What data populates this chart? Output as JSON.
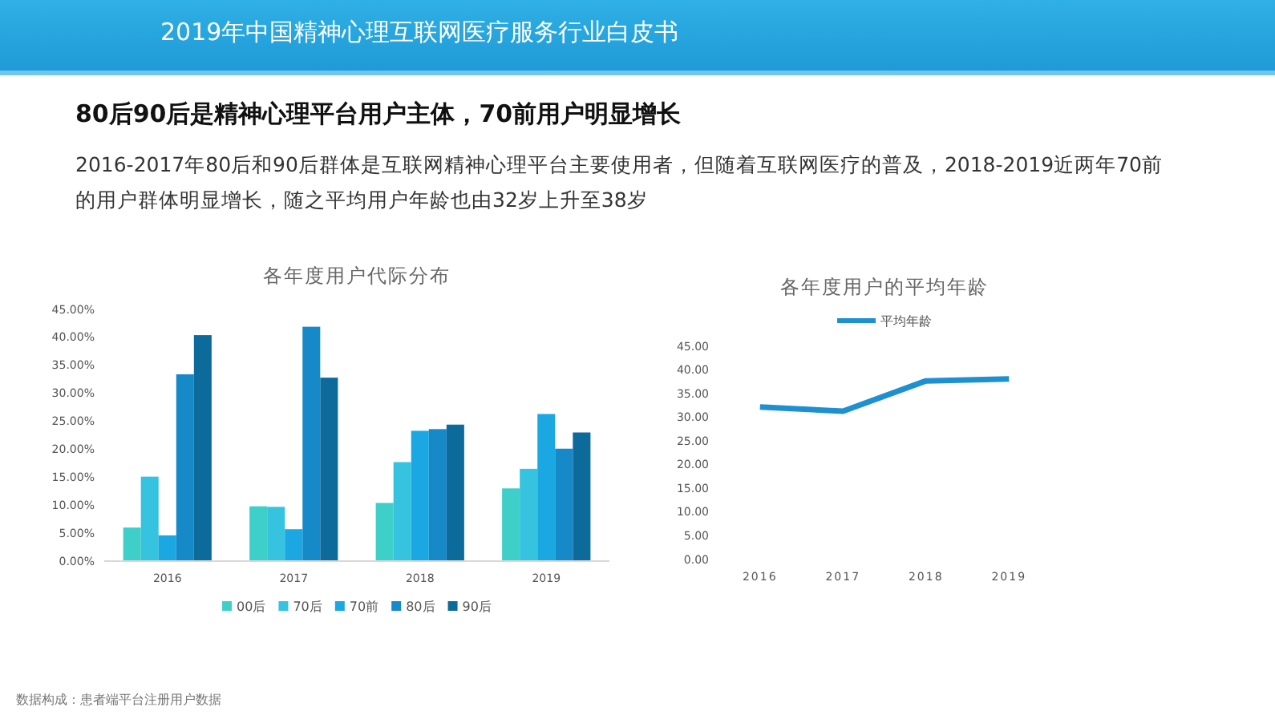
{
  "chart_data": [
    {
      "type": "bar",
      "title": "各年度用户代际分布",
      "categories": [
        "2016",
        "2017",
        "2018",
        "2019"
      ],
      "series": [
        {
          "name": "00后",
          "color": "#3fcfc9",
          "values": [
            6.0,
            9.8,
            10.4,
            13.0
          ]
        },
        {
          "name": "70后",
          "color": "#35c3e0",
          "values": [
            15.1,
            9.7,
            17.7,
            16.5
          ]
        },
        {
          "name": "70前",
          "color": "#1ba8e2",
          "values": [
            4.6,
            5.7,
            23.3,
            26.3
          ]
        },
        {
          "name": "80后",
          "color": "#1689c9",
          "values": [
            33.4,
            41.9,
            23.6,
            20.1
          ]
        },
        {
          "name": "90后",
          "color": "#0d6b9c",
          "values": [
            40.4,
            32.8,
            24.4,
            23.0
          ]
        }
      ],
      "ylim": [
        0,
        45
      ],
      "yticks": [
        {
          "value": 0,
          "label": "0.00%"
        },
        {
          "value": 5,
          "label": "5.00%"
        },
        {
          "value": 10,
          "label": "10.00%"
        },
        {
          "value": 15,
          "label": "15.00%"
        },
        {
          "value": 20,
          "label": "20.00%"
        },
        {
          "value": 25,
          "label": "25.00%"
        },
        {
          "value": 30,
          "label": "30.00%"
        },
        {
          "value": 35,
          "label": "35.00%"
        },
        {
          "value": 40,
          "label": "40.00%"
        },
        {
          "value": 45,
          "label": "45.00%"
        }
      ],
      "legend": "bottom",
      "grid": false,
      "annotations": [
        "2019年中国精神心理互联网医疗服务行业白皮书",
        "80后90后是精神心理平台用户主体，70前用户明显增长",
        "2016-2017年80后和90后群体是互联网精神心理平台主要使用者，但随着互联网医疗的普及，2018-2019近两年70前的用户群体明显增长，随之平均用户年龄也由32岁上升至38岁",
        "数据构成：患者端平台注册用户数据"
      ]
    },
    {
      "type": "line",
      "title": "各年度用户的平均年龄",
      "categories": [
        "2016",
        "2017",
        "2018",
        "2019"
      ],
      "series": [
        {
          "name": "平均年龄",
          "color": "#1e90d2",
          "values": [
            32.2,
            31.3,
            37.7,
            38.1
          ]
        }
      ],
      "ylim": [
        0,
        45
      ],
      "yticks": [
        {
          "value": 0,
          "label": "0.00"
        },
        {
          "value": 5,
          "label": "5.00"
        },
        {
          "value": 10,
          "label": "10.00"
        },
        {
          "value": 15,
          "label": "15.00"
        },
        {
          "value": 20,
          "label": "20.00"
        },
        {
          "value": 25,
          "label": "25.00"
        },
        {
          "value": 30,
          "label": "30.00"
        },
        {
          "value": 35,
          "label": "35.00"
        },
        {
          "value": 40,
          "label": "40.00"
        },
        {
          "value": 45,
          "label": "45.00"
        }
      ],
      "legend": "top",
      "grid": false,
      "marker": "none",
      "line_style": "solid"
    }
  ]
}
